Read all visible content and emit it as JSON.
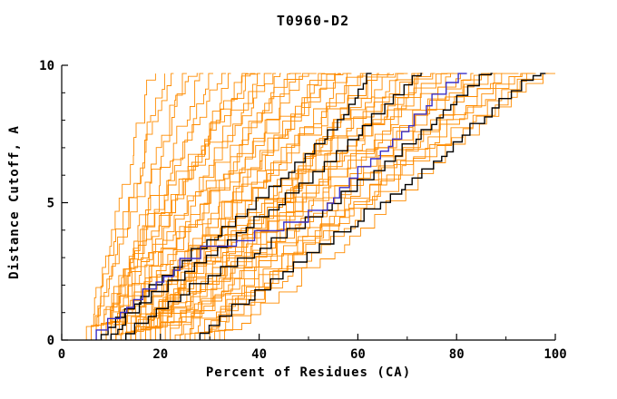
{
  "chart_data": {
    "type": "line",
    "title": "T0960-D2",
    "xlabel": "Percent of Residues (CA)",
    "ylabel": "Distance Cutoff, A",
    "xlim": [
      0,
      100
    ],
    "ylim": [
      0,
      10
    ],
    "xticks": [
      0,
      20,
      40,
      60,
      80,
      100
    ],
    "xticks_minor": [
      10,
      30,
      50,
      70,
      90
    ],
    "yticks": [
      0,
      5,
      10
    ],
    "yticks_minor": [
      1,
      2,
      3,
      4,
      6,
      7,
      8,
      9
    ],
    "ymax_data": 9.7,
    "grid": false,
    "legend": "none",
    "colors": {
      "orange": "#ff8c00",
      "black": "#000000",
      "blue": "#3a2fc8"
    },
    "orange_curves": [
      [
        5,
        19,
        1.0
      ],
      [
        6,
        21,
        0.9
      ],
      [
        6,
        23,
        1.1
      ],
      [
        7,
        25,
        0.8
      ],
      [
        7,
        27,
        1.2
      ],
      [
        8,
        29,
        1.0
      ],
      [
        8,
        31,
        0.9
      ],
      [
        9,
        33,
        1.1
      ],
      [
        9,
        35,
        0.8
      ],
      [
        10,
        37,
        1.0
      ],
      [
        10,
        39,
        1.2
      ],
      [
        11,
        41,
        0.9
      ],
      [
        11,
        43,
        1.05
      ],
      [
        12,
        45,
        0.85
      ],
      [
        12,
        47,
        1.0
      ],
      [
        13,
        49,
        0.9
      ],
      [
        13,
        51,
        1.15
      ],
      [
        14,
        53,
        0.8
      ],
      [
        14,
        55,
        1.0
      ],
      [
        15,
        57,
        1.1
      ],
      [
        15,
        59,
        0.9
      ],
      [
        16,
        61,
        1.0
      ],
      [
        16,
        63,
        1.2
      ],
      [
        17,
        65,
        0.85
      ],
      [
        17,
        67,
        1.0
      ],
      [
        18,
        69,
        1.1
      ],
      [
        18,
        70,
        0.95
      ],
      [
        19,
        66,
        1.3
      ],
      [
        19,
        58,
        1.4
      ],
      [
        20,
        62,
        0.75
      ],
      [
        10,
        50,
        1.3
      ],
      [
        11,
        56,
        1.25
      ],
      [
        9,
        44,
        1.35
      ],
      [
        8,
        40,
        1.3
      ],
      [
        20,
        72,
        1.0
      ],
      [
        21,
        74,
        0.9
      ],
      [
        22,
        76,
        1.1
      ],
      [
        23,
        78,
        0.95
      ],
      [
        24,
        80,
        1.05
      ],
      [
        25,
        82,
        0.9
      ],
      [
        26,
        84,
        1.1
      ],
      [
        27,
        86,
        1.0
      ],
      [
        28,
        88,
        0.9
      ],
      [
        29,
        90,
        1.05
      ],
      [
        30,
        92,
        0.95
      ],
      [
        31,
        94,
        1.1
      ],
      [
        32,
        96,
        1.0
      ],
      [
        33,
        98,
        0.9
      ],
      [
        30,
        100,
        1.15
      ],
      [
        26,
        95,
        1.25
      ],
      [
        22,
        87,
        1.3
      ],
      [
        18,
        79,
        1.2
      ],
      [
        16,
        73,
        1.15
      ],
      [
        15,
        75,
        0.8
      ]
    ],
    "black_curves": [
      [
        [
          8,
          0
        ],
        [
          14,
          1
        ],
        [
          20,
          2
        ],
        [
          27,
          3
        ],
        [
          34,
          4
        ],
        [
          41,
          5
        ],
        [
          48,
          6.2
        ],
        [
          54,
          7.3
        ],
        [
          59,
          8.4
        ],
        [
          63,
          9.7
        ]
      ],
      [
        [
          10,
          0
        ],
        [
          17,
          1.2
        ],
        [
          25,
          2.2
        ],
        [
          33,
          3.3
        ],
        [
          42,
          4.5
        ],
        [
          50,
          5.6
        ],
        [
          58,
          6.9
        ],
        [
          65,
          8.2
        ],
        [
          70,
          9.0
        ],
        [
          73,
          9.7
        ]
      ],
      [
        [
          13,
          0
        ],
        [
          22,
          1.2
        ],
        [
          32,
          2.3
        ],
        [
          43,
          3.4
        ],
        [
          54,
          4.6
        ],
        [
          63,
          5.8
        ],
        [
          71,
          7.0
        ],
        [
          78,
          8.2
        ],
        [
          83,
          9.0
        ],
        [
          87,
          9.7
        ]
      ],
      [
        [
          28,
          0
        ],
        [
          38,
          1.3
        ],
        [
          48,
          2.6
        ],
        [
          58,
          3.9
        ],
        [
          68,
          5.2
        ],
        [
          77,
          6.5
        ],
        [
          85,
          7.8
        ],
        [
          91,
          8.8
        ],
        [
          96,
          9.5
        ],
        [
          98,
          9.7
        ]
      ]
    ],
    "blue_curve": [
      [
        7,
        0
      ],
      [
        13,
        1
      ],
      [
        20,
        2
      ],
      [
        27,
        2.9
      ],
      [
        35,
        3.4
      ],
      [
        44,
        3.9
      ],
      [
        52,
        4.4
      ],
      [
        57,
        5.3
      ],
      [
        62,
        6.2
      ],
      [
        67,
        7.0
      ],
      [
        72,
        7.9
      ],
      [
        76,
        8.7
      ],
      [
        80,
        9.3
      ],
      [
        82,
        9.7
      ]
    ]
  }
}
